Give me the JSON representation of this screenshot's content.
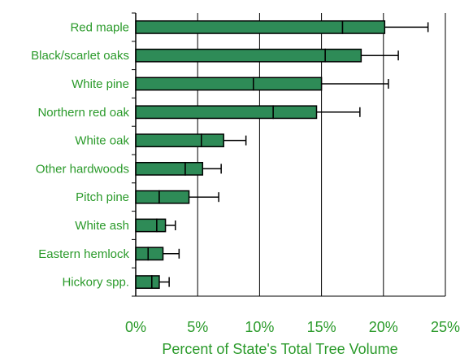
{
  "chart_data": {
    "type": "bar",
    "orientation": "horizontal",
    "categories": [
      "Red maple",
      "Black/scarlet oaks",
      "White pine",
      "Northern red oak",
      "White oak",
      "Other hardwoods",
      "Pitch pine",
      "White ash",
      "Eastern hemlock",
      "Hickory spp."
    ],
    "series": [
      {
        "segments": [
          [
            16.7,
            3.4
          ],
          [
            15.3,
            2.9
          ],
          [
            9.5,
            5.5
          ],
          [
            11.1,
            3.5
          ],
          [
            5.3,
            1.8
          ],
          [
            4.0,
            1.4
          ],
          [
            1.9,
            2.4
          ],
          [
            1.7,
            0.7
          ],
          [
            1.0,
            1.2
          ],
          [
            1.3,
            0.6
          ]
        ],
        "error_upper": [
          23.6,
          21.2,
          20.4,
          18.1,
          8.9,
          6.9,
          6.7,
          3.2,
          3.5,
          2.7
        ]
      }
    ],
    "xlabel": "Percent of State's Total Tree Volume",
    "xlim": [
      0,
      25
    ],
    "xticks": [
      "0%",
      "5%",
      "10%",
      "15%",
      "20%",
      "25%"
    ],
    "grid": "vertical",
    "colors": {
      "bar": "#2e8b57",
      "text": "#2a9a2a",
      "border": "#000000"
    }
  }
}
